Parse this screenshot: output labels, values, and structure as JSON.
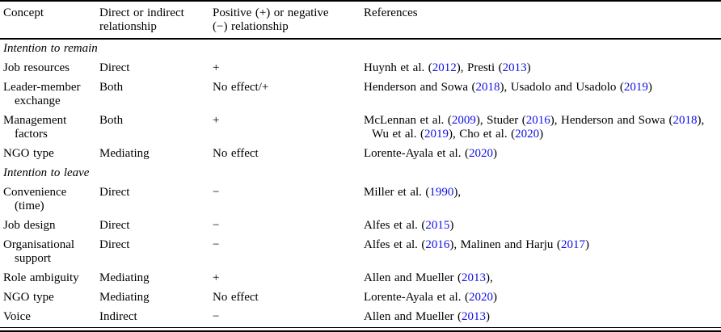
{
  "page": {
    "background": "#ffffff",
    "text_color": "#000000",
    "link_color": "#0f0fe8"
  },
  "table": {
    "headers": [
      {
        "lines": [
          "Concept"
        ]
      },
      {
        "lines": [
          "Direct or indirect",
          "relationship"
        ]
      },
      {
        "lines": [
          "Positive (+) or negative",
          "(−) relationship"
        ]
      },
      {
        "lines": [
          "References"
        ]
      }
    ],
    "rows": [
      {
        "type": "section",
        "label": "Intention to remain"
      },
      {
        "type": "data",
        "concept": [
          "Job resources"
        ],
        "relationship": "Direct",
        "sign": "+",
        "references": [
          [
            {
              "t": "Huynh et al. ("
            },
            {
              "t": "2012",
              "link": true
            },
            {
              "t": "), Presti ("
            },
            {
              "t": "2013",
              "link": true
            },
            {
              "t": ")"
            }
          ]
        ]
      },
      {
        "type": "data",
        "concept": [
          "Leader-member",
          "exchange"
        ],
        "relationship": "Both",
        "sign": "No effect/+",
        "references": [
          [
            {
              "t": "Henderson and Sowa ("
            },
            {
              "t": "2018",
              "link": true
            },
            {
              "t": "), Usadolo and Usadolo ("
            },
            {
              "t": "2019",
              "link": true
            },
            {
              "t": ")"
            }
          ]
        ]
      },
      {
        "type": "data",
        "concept": [
          "Management",
          "factors"
        ],
        "relationship": "Both",
        "sign": "+",
        "references": [
          [
            {
              "t": "McLennan et al. ("
            },
            {
              "t": "2009",
              "link": true
            },
            {
              "t": "), Studer ("
            },
            {
              "t": "2016",
              "link": true
            },
            {
              "t": "), Henderson and Sowa ("
            },
            {
              "t": "2018",
              "link": true
            },
            {
              "t": "),"
            }
          ],
          [
            {
              "t": "Wu et al. ("
            },
            {
              "t": "2019",
              "link": true
            },
            {
              "t": "), Cho et al. ("
            },
            {
              "t": "2020",
              "link": true
            },
            {
              "t": ")"
            }
          ]
        ]
      },
      {
        "type": "data",
        "concept": [
          "NGO type"
        ],
        "relationship": "Mediating",
        "sign": "No effect",
        "references": [
          [
            {
              "t": "Lorente-Ayala et al. ("
            },
            {
              "t": "2020",
              "link": true
            },
            {
              "t": ")"
            }
          ]
        ]
      },
      {
        "type": "section",
        "label": "Intention to leave"
      },
      {
        "type": "data",
        "concept": [
          "Convenience",
          "(time)"
        ],
        "relationship": "Direct",
        "sign": "−",
        "references": [
          [
            {
              "t": "Miller et al. ("
            },
            {
              "t": "1990",
              "link": true
            },
            {
              "t": "),"
            }
          ]
        ]
      },
      {
        "type": "data",
        "concept": [
          "Job design"
        ],
        "relationship": "Direct",
        "sign": "−",
        "references": [
          [
            {
              "t": "Alfes et al. ("
            },
            {
              "t": "2015",
              "link": true
            },
            {
              "t": ")"
            }
          ]
        ]
      },
      {
        "type": "data",
        "concept": [
          "Organisational",
          "support"
        ],
        "relationship": "Direct",
        "sign": "−",
        "references": [
          [
            {
              "t": "Alfes et al. ("
            },
            {
              "t": "2016",
              "link": true
            },
            {
              "t": "), Malinen and Harju ("
            },
            {
              "t": "2017",
              "link": true
            },
            {
              "t": ")"
            }
          ]
        ]
      },
      {
        "type": "data",
        "concept": [
          "Role ambiguity"
        ],
        "relationship": "Mediating",
        "sign": "+",
        "references": [
          [
            {
              "t": "Allen and Mueller ("
            },
            {
              "t": "2013",
              "link": true
            },
            {
              "t": "),"
            }
          ]
        ]
      },
      {
        "type": "data",
        "concept": [
          "NGO type"
        ],
        "relationship": "Mediating",
        "sign": "No effect",
        "references": [
          [
            {
              "t": "Lorente-Ayala et al. ("
            },
            {
              "t": "2020",
              "link": true
            },
            {
              "t": ")"
            }
          ]
        ]
      },
      {
        "type": "data",
        "concept": [
          "Voice"
        ],
        "relationship": "Indirect",
        "sign": "−",
        "references": [
          [
            {
              "t": "Allen and Mueller ("
            },
            {
              "t": "2013",
              "link": true
            },
            {
              "t": ")"
            }
          ]
        ]
      }
    ]
  }
}
